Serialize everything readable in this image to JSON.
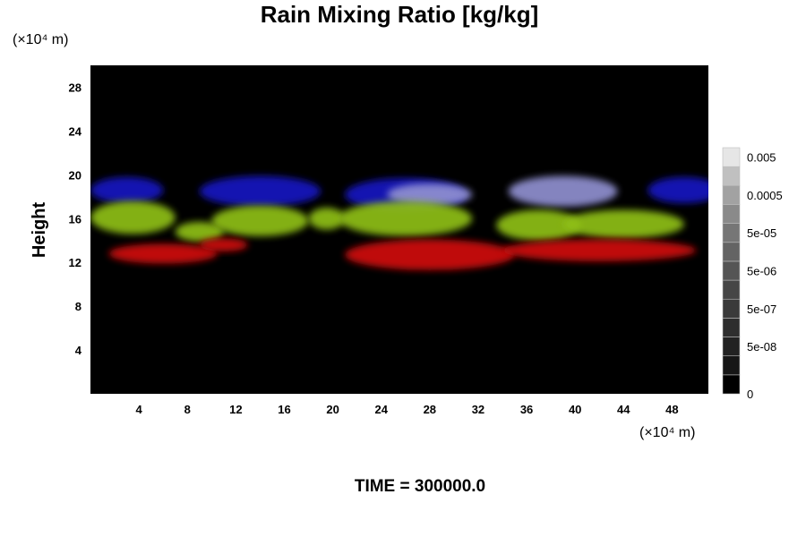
{
  "chart_data": {
    "type": "heatmap",
    "title": "Rain Mixing Ratio [kg/kg]",
    "xlabel": "",
    "ylabel": "Height",
    "x_unit_label": "(×10⁴ m)",
    "y_unit_label": "(×10⁴ m)",
    "x_ticks": [
      4,
      8,
      12,
      16,
      20,
      24,
      28,
      32,
      36,
      40,
      44,
      48
    ],
    "y_ticks": [
      4,
      8,
      12,
      16,
      20,
      24,
      28
    ],
    "xlim": [
      0,
      51
    ],
    "ylim": [
      0,
      30
    ],
    "colorbar": {
      "labels": [
        "0.005",
        "0.0005",
        "5e-05",
        "5e-06",
        "5e-07",
        "5e-08",
        "0"
      ],
      "levels": 13,
      "shades": [
        "#000000",
        "#161616",
        "#222222",
        "#2e2e2e",
        "#3a3a3a",
        "#464646",
        "#555555",
        "#646464",
        "#767676",
        "#8a8a8a",
        "#a2a2a2",
        "#c0c0c0",
        "#e6e6e6"
      ]
    },
    "bands": [
      {
        "color": "#1515c0",
        "y_range": [
          16.5,
          20
        ],
        "x_range": [
          0,
          51
        ],
        "features": [
          {
            "x": 3,
            "y": 18.6,
            "rx": 3,
            "ry": 1.2
          },
          {
            "x": 14,
            "y": 18.5,
            "rx": 5,
            "ry": 1.4
          },
          {
            "x": 26,
            "y": 18.2,
            "rx": 5,
            "ry": 1.5
          },
          {
            "x": 49,
            "y": 18.6,
            "rx": 3,
            "ry": 1.2
          }
        ]
      },
      {
        "color": "#9090d0",
        "features": [
          {
            "x": 28,
            "y": 18.2,
            "rx": 3.5,
            "ry": 1.0
          },
          {
            "x": 39,
            "y": 18.5,
            "rx": 4.5,
            "ry": 1.4
          }
        ]
      },
      {
        "color": "#8fbf18",
        "features": [
          {
            "x": 3.5,
            "y": 16.1,
            "rx": 3.5,
            "ry": 1.5
          },
          {
            "x": 9,
            "y": 14.8,
            "rx": 2,
            "ry": 0.9
          },
          {
            "x": 14,
            "y": 15.8,
            "rx": 4,
            "ry": 1.4
          },
          {
            "x": 19.5,
            "y": 16.0,
            "rx": 1.5,
            "ry": 1.0
          },
          {
            "x": 26,
            "y": 16.0,
            "rx": 5.5,
            "ry": 1.6
          },
          {
            "x": 37,
            "y": 15.4,
            "rx": 3.5,
            "ry": 1.4
          },
          {
            "x": 44,
            "y": 15.5,
            "rx": 5,
            "ry": 1.3
          }
        ]
      },
      {
        "color": "#d01010",
        "features": [
          {
            "x": 6,
            "y": 12.8,
            "rx": 4.5,
            "ry": 0.9
          },
          {
            "x": 11,
            "y": 13.6,
            "rx": 2,
            "ry": 0.6
          },
          {
            "x": 28,
            "y": 12.7,
            "rx": 7,
            "ry": 1.4
          },
          {
            "x": 42,
            "y": 13.1,
            "rx": 8,
            "ry": 1.0
          }
        ]
      }
    ],
    "footer": "TIME = 300000.0"
  }
}
